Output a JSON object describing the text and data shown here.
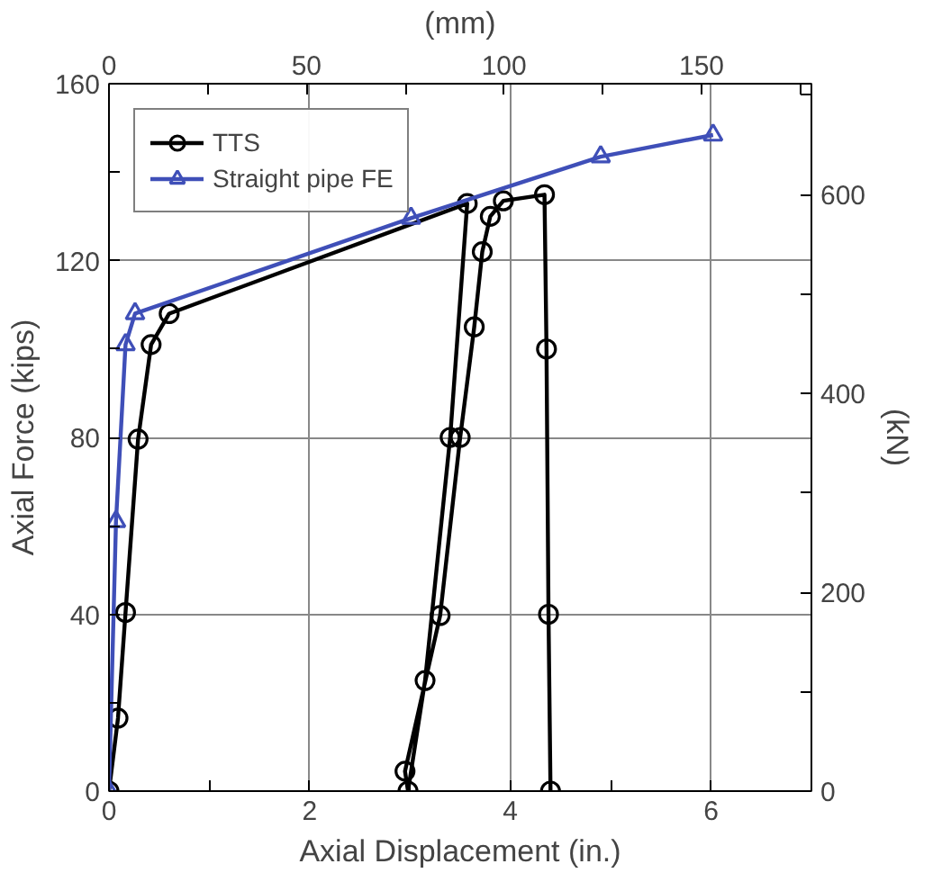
{
  "chart_data": {
    "type": "line",
    "xlabel": "Axial Displacement (in.)",
    "ylabel": "Axial Force (kips)",
    "x2label": "(mm)",
    "y2label": "(kN)",
    "xlim": [
      0,
      7
    ],
    "xticks": [
      0,
      {
        "value": 1,
        "label": null
      },
      2,
      {
        "value": 3,
        "label": null
      },
      4,
      {
        "value": 5,
        "label": null
      },
      6,
      {
        "value": 7,
        "label": null
      }
    ],
    "ylim": [
      0,
      160
    ],
    "yticks": [
      0,
      {
        "value": 20,
        "label": null
      },
      40,
      {
        "value": 60,
        "label": null
      },
      80,
      {
        "value": 100,
        "label": null
      },
      120,
      {
        "value": 140,
        "label": null
      },
      160
    ],
    "x2lim": [
      0,
      177.8
    ],
    "x2ticks": [
      0,
      {
        "value": 25,
        "label": null
      },
      50,
      {
        "value": 75,
        "label": null
      },
      100,
      {
        "value": 125,
        "label": null
      },
      150,
      {
        "value": 175,
        "label": null
      }
    ],
    "y2lim": [
      0,
      711.7
    ],
    "y2ticks": [
      0,
      {
        "value": 100,
        "label": null
      },
      200,
      {
        "value": 300,
        "label": null
      },
      400,
      {
        "value": 500,
        "label": null
      },
      600,
      {
        "value": 700,
        "label": null
      }
    ],
    "grid": true,
    "legend": "top left",
    "line_style": "solid",
    "series": [
      {
        "name": "TTS",
        "color": "#000000",
        "marker": "circle",
        "x": [
          0,
          0.09,
          0.165,
          0.29,
          0.42,
          0.6,
          3.57,
          3.4,
          3.15,
          2.98,
          2.95,
          3.3,
          3.5,
          3.64,
          3.72,
          3.8,
          3.93,
          4.34,
          4.36,
          4.38,
          4.4
        ],
        "values": [
          0,
          16.5,
          40.4,
          79.6,
          101,
          108,
          132.9,
          80,
          25,
          0,
          4.5,
          39.7,
          80,
          105,
          122,
          130,
          133.5,
          134.9,
          100,
          40,
          0
        ]
      },
      {
        "name": "Straight pipe FE",
        "color": "#3f4fb8",
        "marker": "triangle",
        "x": [
          0,
          0.07,
          0.165,
          0.26,
          3.01,
          4.9,
          6.02
        ],
        "values": [
          0,
          61,
          101,
          108,
          129.6,
          143.5,
          148.4
        ]
      }
    ]
  }
}
